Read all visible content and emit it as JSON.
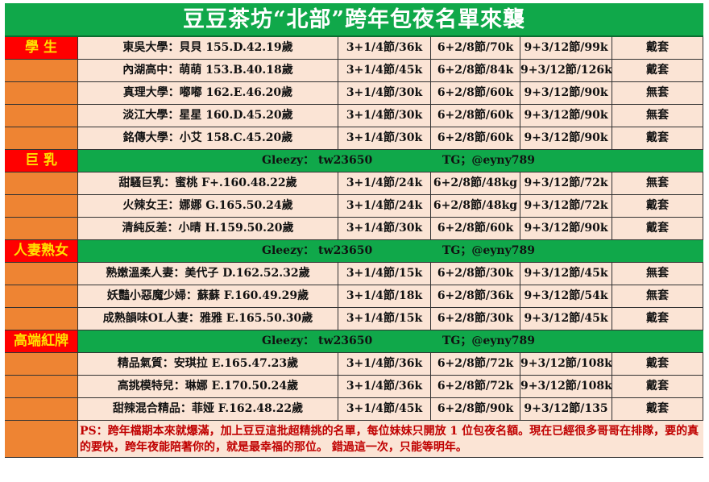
{
  "title": "豆豆茶坊“北部”跨年包夜名單來襲",
  "band": {
    "gleezy": "Gleezy： tw23650",
    "tg": "TG；@eyny789"
  },
  "sections": [
    {
      "category": "學 生",
      "band": false,
      "rows": [
        [
          "東吳大學：貝貝 155.D.42.19歲",
          "3+1/4節/36k",
          "6+2/8節/70k",
          "9+3/12節/99k",
          "戴套"
        ],
        [
          "內湖高中：萌萌 153.B.40.18歲",
          "3+1/4節/45k",
          "6+2/8節/84k",
          "9+3/12節/126k",
          "戴套"
        ],
        [
          "真理大學：嘟嘟 162.E.46.20歲",
          "3+1/4節/30k",
          "6+2/8節/60k",
          "9+3/12節/90k",
          "無套"
        ],
        [
          "淡江大學：星星 160.D.45.20歲",
          "3+1/4節/30k",
          "6+2/8節/60k",
          "9+3/12節/90k",
          "無套"
        ],
        [
          "銘傳大學：小艾 158.C.45.20歲",
          "3+1/4節/30k",
          "6+2/8節/60k",
          "9+3/12節/90k",
          "戴套"
        ]
      ]
    },
    {
      "category": "巨 乳",
      "band": true,
      "rows": [
        [
          "甜騷巨乳：蜜桃 F+.160.48.22歲",
          "3+1/4節/24k",
          "6+2/8節/48kg",
          "9+3/12節/72k",
          "無套"
        ],
        [
          "火辣女王：娜娜 G.165.50.24歲",
          "3+1/4節/24k",
          "6+2/8節/48kg",
          "9+3/12節/72k",
          "戴套"
        ],
        [
          "清純反差：小晴 H.159.50.20歲",
          "3+1/4節/30k",
          "6+2/8節/60k",
          "9+3/12節/90k",
          "戴套"
        ]
      ]
    },
    {
      "category": "人妻熟女",
      "band": true,
      "rows": [
        [
          "熟嫩溫柔人妻：美代子 D.162.52.32歲",
          "3+1/4節/15k",
          "6+2/8節/30k",
          "9+3/12節/45k",
          "無套"
        ],
        [
          "妖豔小惡魔少婦：蘇蘇 F.160.49.29歲",
          "3+1/4節/18k",
          "6+2/8節/36k",
          "9+3/12節/54k",
          "無套"
        ],
        [
          "成熟韻味OL人妻：雅雅 E.165.50.30歲",
          "3+1/4節/15k",
          "6+2/8節/30k",
          "9+3/12節/45k",
          "戴套"
        ]
      ]
    },
    {
      "category": "高端紅牌",
      "band": true,
      "rows": [
        [
          "精品氣質：安琪拉 E.165.47.23歲",
          "3+1/4節/36k",
          "6+2/8節/72k",
          "9+3/12節/108k",
          "戴套"
        ],
        [
          "高挑模特兒：琳娜 E.170.50.24歲",
          "3+1/4節/36k",
          "6+2/8節/72k",
          "9+3/12節/108k",
          "戴套"
        ],
        [
          "甜辣混合精品：菲娅 F.162.48.22歲",
          "3+1/4節/45k",
          "6+2/8節/90k",
          "9+3/12節/135",
          "戴套"
        ]
      ]
    }
  ],
  "ps": "PS：跨年檔期本來就爆滿，加上豆豆這批超精挑的名單，每位妹妹只開放 1 位包夜名額。現在已經很多哥哥在排隊，要的真的要快，跨年夜能陪著你的，就是最幸福的那位。 錯過這一次，只能等明年。"
}
